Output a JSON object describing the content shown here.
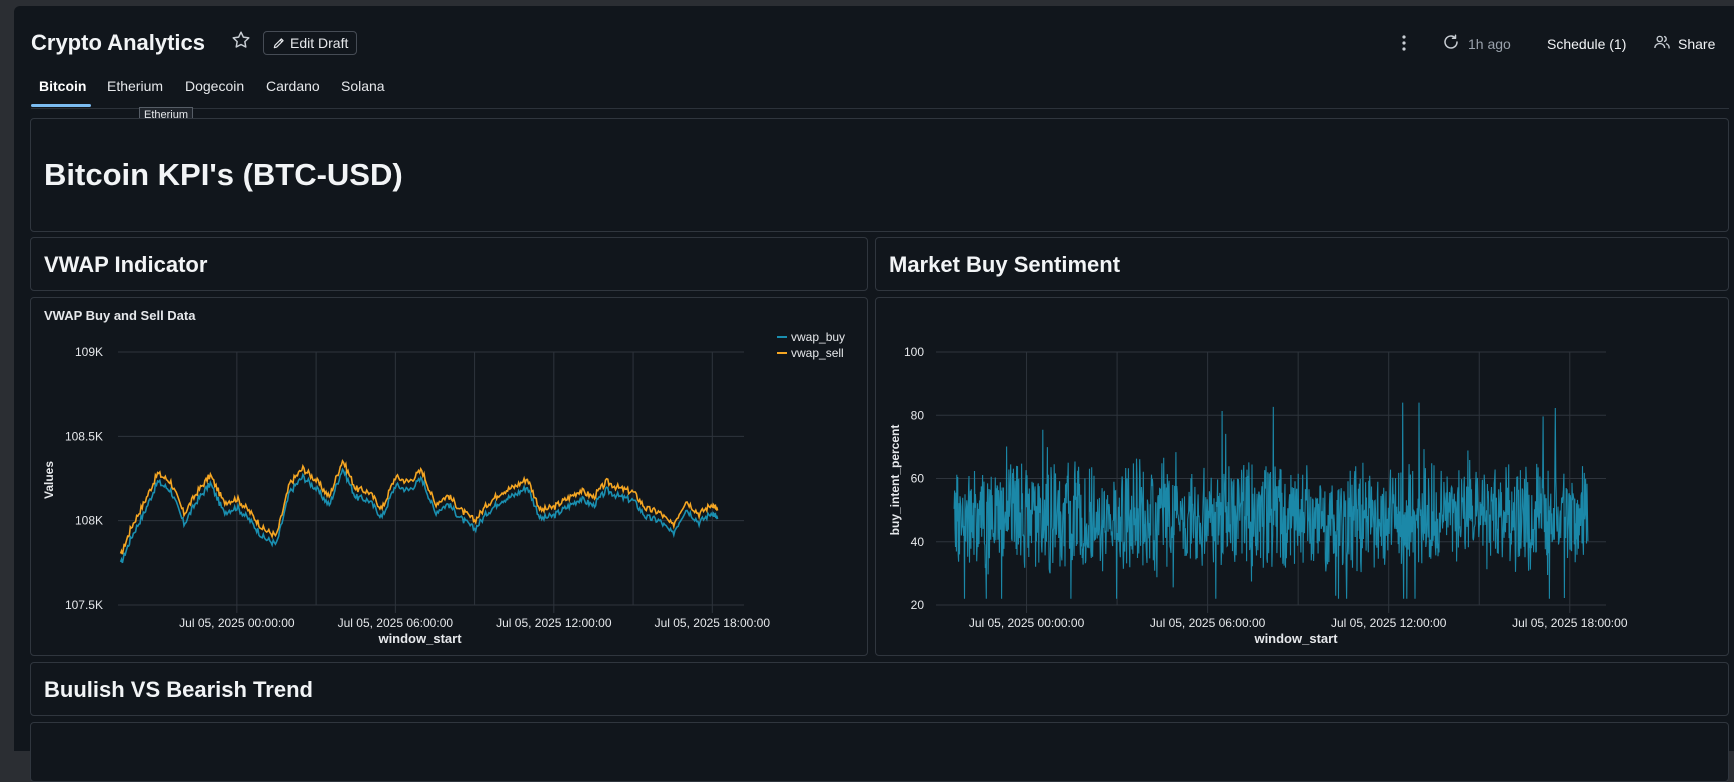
{
  "header": {
    "title": "Crypto Analytics",
    "edit_draft_label": "Edit Draft",
    "refresh_ago": "1h ago",
    "schedule_label": "Schedule (1)",
    "share_label": "Share"
  },
  "tabs": [
    {
      "label": "Bitcoin",
      "active": true
    },
    {
      "label": "Etherium",
      "active": false
    },
    {
      "label": "Dogecoin",
      "active": false
    },
    {
      "label": "Cardano",
      "active": false
    },
    {
      "label": "Solana",
      "active": false
    }
  ],
  "tooltip": "Etherium",
  "kpi_title": "Bitcoin KPI's (BTC-USD)",
  "sections": {
    "vwap": "VWAP Indicator",
    "sentiment": "Market Buy Sentiment",
    "trend": "Buulish VS Bearish Trend"
  },
  "colors": {
    "vwap_buy": "#1a8fb0",
    "vwap_sell": "#f5a623",
    "buy_intent": "#1b88a8"
  },
  "chart_data": [
    {
      "type": "line",
      "title": "VWAP Buy and Sell Data",
      "xlabel": "window_start",
      "ylabel": "Values",
      "ylim": [
        107500,
        109000
      ],
      "yticks": [
        107500,
        108000,
        108500,
        109000
      ],
      "ytick_labels": [
        "107.5K",
        "108K",
        "108.5K",
        "109K"
      ],
      "xticks": [
        "Jul 05, 2025 00:00:00",
        "Jul 05, 2025 06:00:00",
        "Jul 05, 2025 12:00:00",
        "Jul 05, 2025 18:00:00"
      ],
      "xlim_hours": [
        -4.5,
        19.2
      ],
      "legend": "top-right",
      "grid": true,
      "x_hours": [
        -4.4,
        -4.0,
        -3.5,
        -3.0,
        -2.5,
        -2.0,
        -1.5,
        -1.0,
        -0.5,
        0.0,
        0.5,
        1.0,
        1.5,
        2.0,
        2.5,
        3.0,
        3.5,
        4.0,
        4.5,
        5.0,
        5.5,
        6.0,
        6.5,
        7.0,
        7.5,
        8.0,
        8.5,
        9.0,
        9.5,
        10.0,
        10.5,
        11.0,
        11.5,
        12.0,
        12.5,
        13.0,
        13.5,
        14.0,
        14.5,
        15.0,
        15.5,
        16.0,
        16.5,
        17.0,
        17.5,
        18.0,
        18.2
      ],
      "series": [
        {
          "name": "vwap_buy",
          "values": [
            107740,
            107900,
            108050,
            108230,
            108180,
            107980,
            108120,
            108220,
            108050,
            108080,
            108000,
            107900,
            107860,
            108170,
            108260,
            108190,
            108090,
            108310,
            108140,
            108120,
            108020,
            108210,
            108180,
            108250,
            108050,
            108100,
            108010,
            107950,
            108050,
            108120,
            108150,
            108200,
            108010,
            108030,
            108080,
            108130,
            108090,
            108180,
            108140,
            108120,
            108020,
            108000,
            107920,
            108070,
            107990,
            108050,
            108010
          ]
        },
        {
          "name": "vwap_sell",
          "values": [
            107790,
            107960,
            108110,
            108280,
            108230,
            108040,
            108170,
            108270,
            108110,
            108130,
            108050,
            107950,
            107910,
            108220,
            108310,
            108240,
            108140,
            108360,
            108190,
            108170,
            108070,
            108260,
            108230,
            108300,
            108100,
            108150,
            108060,
            108000,
            108100,
            108170,
            108200,
            108250,
            108060,
            108080,
            108130,
            108180,
            108140,
            108230,
            108190,
            108170,
            108070,
            108050,
            107970,
            108120,
            108040,
            108100,
            108060
          ]
        }
      ]
    },
    {
      "type": "line",
      "title": "",
      "xlabel": "window_start",
      "ylabel": "buy_intent_percent",
      "ylim": [
        20,
        100
      ],
      "yticks": [
        20,
        40,
        60,
        80,
        100
      ],
      "xticks": [
        "Jul 05, 2025 00:00:00",
        "Jul 05, 2025 06:00:00",
        "Jul 05, 2025 12:00:00",
        "Jul 05, 2025 18:00:00"
      ],
      "xlim_hours": [
        -3.0,
        19.2
      ],
      "grid": true,
      "series": [
        {
          "name": "buy_intent_percent",
          "x_start_hours": -2.4,
          "x_end_hours": 18.6,
          "mean": 48,
          "min": 22,
          "max": 84
        }
      ]
    }
  ]
}
